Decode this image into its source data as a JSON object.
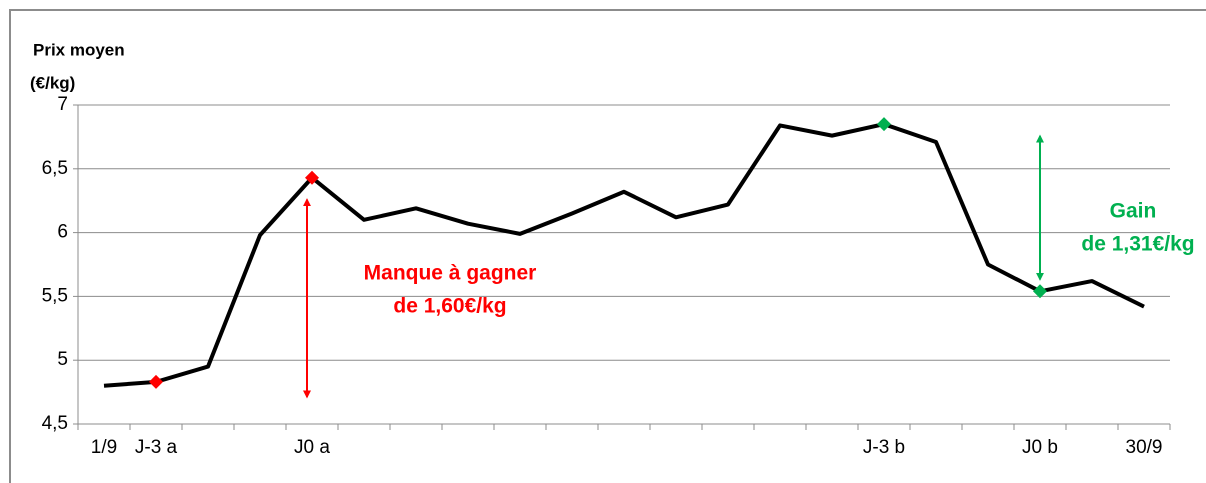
{
  "chart_data": {
    "type": "line",
    "ylabel": [
      "Prix moyen",
      "(€/kg)"
    ],
    "categories": [
      "1/9",
      "J-3 a",
      null,
      null,
      "J0 a",
      null,
      null,
      null,
      null,
      null,
      null,
      null,
      null,
      null,
      null,
      "J-3 b",
      null,
      null,
      "J0 b",
      null,
      "30/9"
    ],
    "series": [
      {
        "color": "#000000",
        "values": [
          4.8,
          4.83,
          4.95,
          5.98,
          6.43,
          6.1,
          6.19,
          6.07,
          5.99,
          6.15,
          6.32,
          6.12,
          6.22,
          6.84,
          6.76,
          6.85,
          6.71,
          5.75,
          5.54,
          5.62,
          5.42
        ]
      }
    ],
    "markers": [
      {
        "index": 1,
        "color": "#ff0000"
      },
      {
        "index": 4,
        "color": "#ff0000"
      },
      {
        "index": 15,
        "color": "#00b050"
      },
      {
        "index": 18,
        "color": "#00b050"
      }
    ],
    "annotations": [
      {
        "lines": [
          "Manque à gagner",
          "de 1,60€/kg"
        ],
        "color": "#ff0000",
        "from_index": 4,
        "to_index": 1
      },
      {
        "lines": [
          "Gain",
          "de 1,31€/kg"
        ],
        "color": "#00b050",
        "from_index": 15,
        "to_index": 18
      }
    ],
    "ylim": [
      4.5,
      7
    ],
    "yticks": [
      {
        "value": 4.5,
        "label": "4,5"
      },
      5,
      {
        "value": 5.5,
        "label": "5,5"
      },
      6,
      {
        "value": 6.5,
        "label": "6,5"
      },
      7
    ],
    "grid": true
  }
}
